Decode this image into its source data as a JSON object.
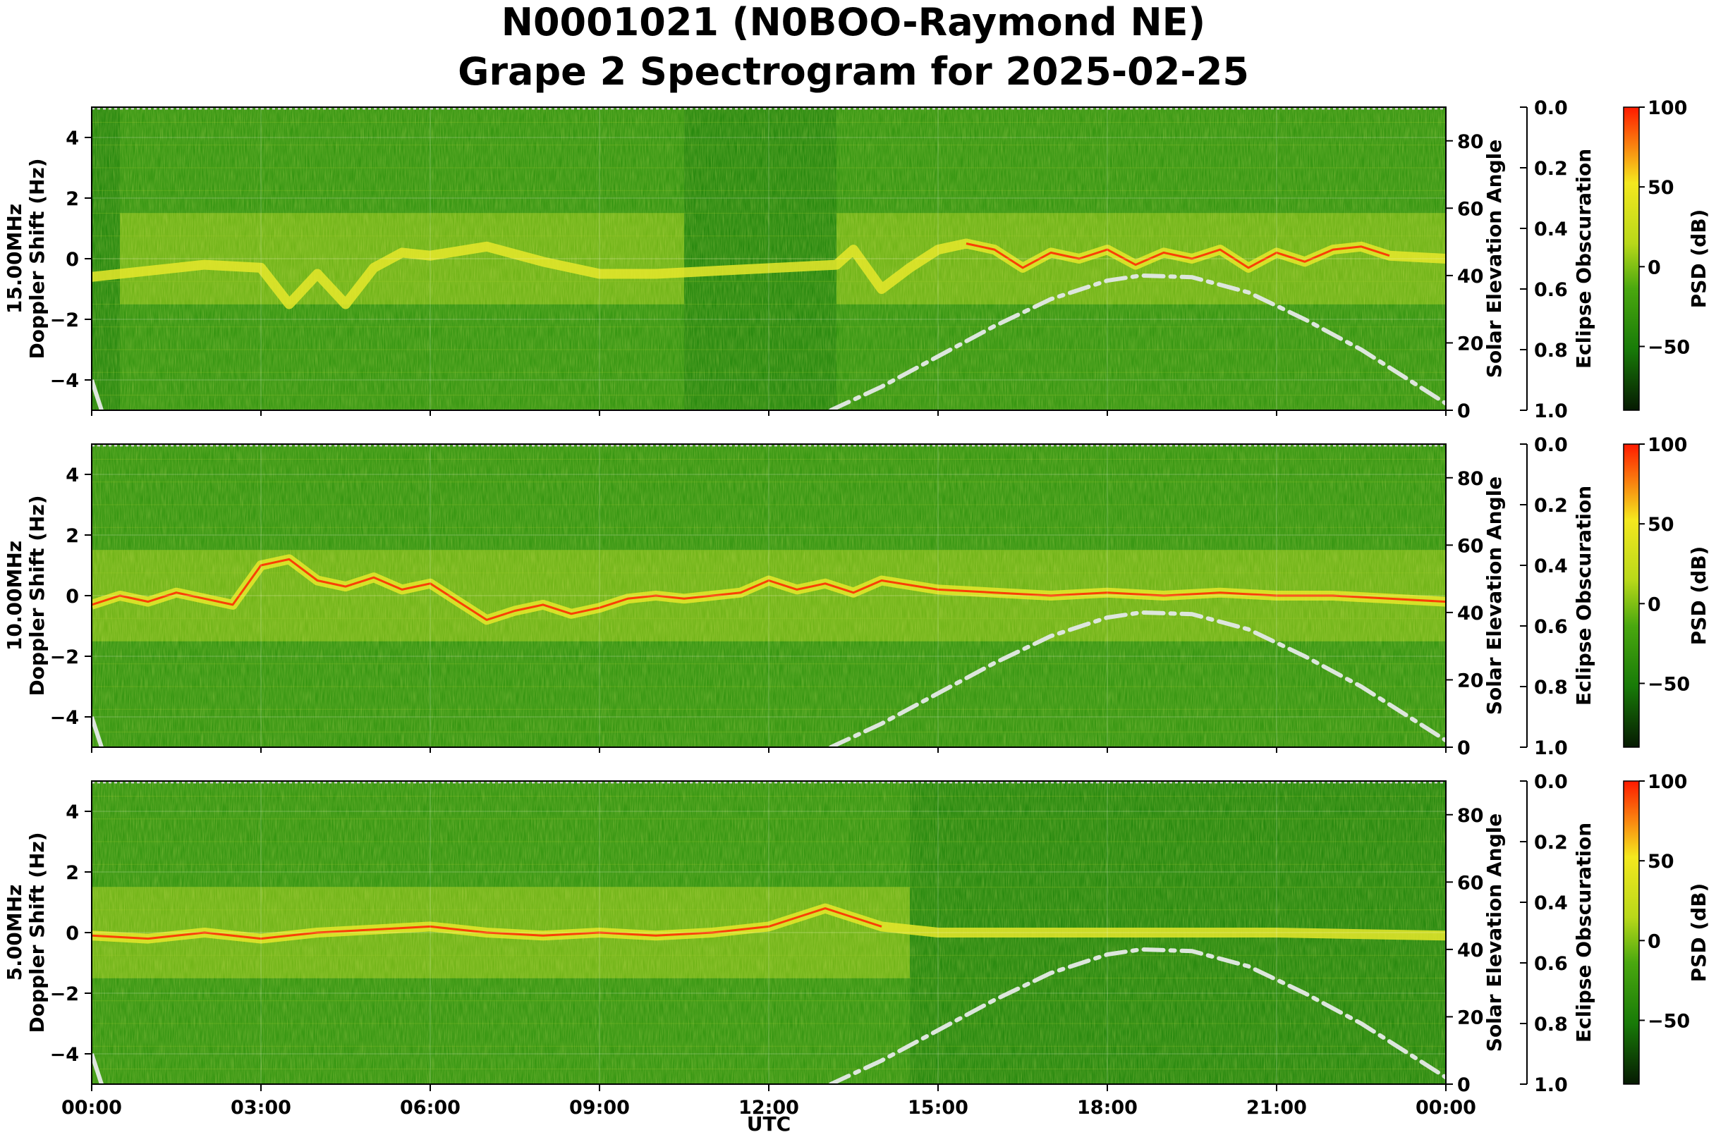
{
  "figure": {
    "title_line1": "N0001021 (N0BOO-Raymond NE)",
    "title_line2": "Grape 2 Spectrogram for 2025-02-25",
    "xlabel": "UTC",
    "x_ticks": [
      "00:00",
      "03:00",
      "06:00",
      "09:00",
      "12:00",
      "15:00",
      "18:00",
      "21:00",
      "00:00"
    ]
  },
  "colors": {
    "background_green": "#2a8a10",
    "dark_green": "#0d6a05",
    "yellow": "#e6e82a",
    "red": "#ff2200",
    "solar_curve": "#dde6dd"
  },
  "chart_data": [
    {
      "type": "heatmap",
      "panel_label": "15.00MHz",
      "ylabel": "Doppler Shift (Hz)",
      "ylim": [
        -5,
        5
      ],
      "y_ticks": [
        "4",
        "2",
        "0",
        "−2",
        "−4"
      ],
      "right_ylabel": "Solar Elevation Angle",
      "right_ylim": [
        0,
        90
      ],
      "right_ticks": [
        "80",
        "60",
        "40",
        "20",
        "0"
      ],
      "eclipse_label": "Eclipse Obscuration",
      "eclipse_ticks": [
        "0.0",
        "0.2",
        "0.4",
        "0.6",
        "0.8",
        "1.0"
      ],
      "colorbar_label": "PSD (dB)",
      "colorbar_ticks": [
        "100",
        "50",
        "0",
        "−50"
      ],
      "colorbar_range": [
        -90,
        100
      ],
      "bright_windows": [
        [
          0.5,
          10.5
        ],
        [
          13.2,
          24
        ]
      ],
      "trace": [
        [
          0,
          -0.6
        ],
        [
          1,
          -0.4
        ],
        [
          2,
          -0.2
        ],
        [
          3,
          -0.3
        ],
        [
          3.5,
          -1.5
        ],
        [
          4,
          -0.5
        ],
        [
          4.5,
          -1.5
        ],
        [
          5,
          -0.3
        ],
        [
          5.5,
          0.2
        ],
        [
          6,
          0.1
        ],
        [
          7,
          0.4
        ],
        [
          8,
          -0.1
        ],
        [
          9,
          -0.5
        ],
        [
          10,
          -0.5
        ],
        [
          13.2,
          -0.2
        ],
        [
          13.5,
          0.3
        ],
        [
          14,
          -1.0
        ],
        [
          14.5,
          -0.3
        ],
        [
          15,
          0.3
        ],
        [
          15.5,
          0.5
        ],
        [
          16,
          0.3
        ],
        [
          16.5,
          -0.3
        ],
        [
          17,
          0.2
        ],
        [
          17.5,
          0.0
        ],
        [
          18,
          0.3
        ],
        [
          18.5,
          -0.2
        ],
        [
          19,
          0.2
        ],
        [
          19.5,
          0.0
        ],
        [
          20,
          0.3
        ],
        [
          20.5,
          -0.3
        ],
        [
          21,
          0.2
        ],
        [
          21.5,
          -0.1
        ],
        [
          22,
          0.3
        ],
        [
          22.5,
          0.4
        ],
        [
          23,
          0.1
        ],
        [
          24,
          0.0
        ]
      ],
      "red_segment": [
        15.5,
        23
      ],
      "solar_elevation": [
        [
          13.1,
          0
        ],
        [
          14,
          7
        ],
        [
          15,
          16
        ],
        [
          16,
          25
        ],
        [
          17,
          33
        ],
        [
          18,
          38.5
        ],
        [
          18.6,
          40
        ],
        [
          19.5,
          39.5
        ],
        [
          20.5,
          35
        ],
        [
          21.5,
          27
        ],
        [
          22.5,
          18
        ],
        [
          23.3,
          9.5
        ],
        [
          24,
          2
        ]
      ]
    },
    {
      "type": "heatmap",
      "panel_label": "10.00MHz",
      "ylabel": "Doppler Shift (Hz)",
      "ylim": [
        -5,
        5
      ],
      "y_ticks": [
        "4",
        "2",
        "0",
        "−2",
        "−4"
      ],
      "right_ylabel": "Solar Elevation Angle",
      "right_ylim": [
        0,
        90
      ],
      "right_ticks": [
        "80",
        "60",
        "40",
        "20",
        "0"
      ],
      "eclipse_label": "Eclipse Obscuration",
      "eclipse_ticks": [
        "0.0",
        "0.2",
        "0.4",
        "0.6",
        "0.8",
        "1.0"
      ],
      "colorbar_label": "PSD (dB)",
      "colorbar_ticks": [
        "100",
        "50",
        "0",
        "−50"
      ],
      "colorbar_range": [
        -90,
        100
      ],
      "bright_windows": [
        [
          0,
          24
        ]
      ],
      "trace": [
        [
          0,
          -0.3
        ],
        [
          0.5,
          0.0
        ],
        [
          1,
          -0.2
        ],
        [
          1.5,
          0.1
        ],
        [
          2,
          -0.1
        ],
        [
          2.5,
          -0.3
        ],
        [
          3,
          1.0
        ],
        [
          3.5,
          1.2
        ],
        [
          4,
          0.5
        ],
        [
          4.5,
          0.3
        ],
        [
          5,
          0.6
        ],
        [
          5.5,
          0.2
        ],
        [
          6,
          0.4
        ],
        [
          6.5,
          -0.2
        ],
        [
          7,
          -0.8
        ],
        [
          7.5,
          -0.5
        ],
        [
          8,
          -0.3
        ],
        [
          8.5,
          -0.6
        ],
        [
          9,
          -0.4
        ],
        [
          9.5,
          -0.1
        ],
        [
          10,
          0.0
        ],
        [
          10.5,
          -0.1
        ],
        [
          11,
          0.0
        ],
        [
          11.5,
          0.1
        ],
        [
          12,
          0.5
        ],
        [
          12.5,
          0.2
        ],
        [
          13,
          0.4
        ],
        [
          13.5,
          0.1
        ],
        [
          14,
          0.5
        ],
        [
          15,
          0.2
        ],
        [
          16,
          0.1
        ],
        [
          17,
          0.0
        ],
        [
          18,
          0.1
        ],
        [
          19,
          0.0
        ],
        [
          20,
          0.1
        ],
        [
          21,
          0.0
        ],
        [
          22,
          0.0
        ],
        [
          23,
          -0.1
        ],
        [
          24,
          -0.2
        ]
      ],
      "red_segment": [
        0,
        24
      ],
      "solar_elevation": [
        [
          13.1,
          0
        ],
        [
          14,
          7
        ],
        [
          15,
          16
        ],
        [
          16,
          25
        ],
        [
          17,
          33
        ],
        [
          18,
          38.5
        ],
        [
          18.6,
          40
        ],
        [
          19.5,
          39.5
        ],
        [
          20.5,
          35
        ],
        [
          21.5,
          27
        ],
        [
          22.5,
          18
        ],
        [
          23.3,
          9.5
        ],
        [
          24,
          2
        ]
      ]
    },
    {
      "type": "heatmap",
      "panel_label": "5.00MHz",
      "ylabel": "Doppler Shift (Hz)",
      "ylim": [
        -5,
        5
      ],
      "y_ticks": [
        "4",
        "2",
        "0",
        "−2",
        "−4"
      ],
      "right_ylabel": "Solar Elevation Angle",
      "right_ylim": [
        0,
        90
      ],
      "right_ticks": [
        "80",
        "60",
        "40",
        "20",
        "0"
      ],
      "eclipse_label": "Eclipse Obscuration",
      "eclipse_ticks": [
        "0.0",
        "0.2",
        "0.4",
        "0.6",
        "0.8",
        "1.0"
      ],
      "colorbar_label": "PSD (dB)",
      "colorbar_ticks": [
        "100",
        "50",
        "0",
        "−50"
      ],
      "colorbar_range": [
        -90,
        100
      ],
      "bright_windows": [
        [
          0,
          14.5
        ]
      ],
      "trace": [
        [
          0,
          -0.1
        ],
        [
          1,
          -0.2
        ],
        [
          2,
          0.0
        ],
        [
          3,
          -0.2
        ],
        [
          4,
          0.0
        ],
        [
          5,
          0.1
        ],
        [
          6,
          0.2
        ],
        [
          7,
          0.0
        ],
        [
          8,
          -0.1
        ],
        [
          9,
          0.0
        ],
        [
          10,
          -0.1
        ],
        [
          11,
          0.0
        ],
        [
          12,
          0.2
        ],
        [
          12.5,
          0.5
        ],
        [
          13,
          0.8
        ],
        [
          13.5,
          0.5
        ],
        [
          14,
          0.2
        ],
        [
          15,
          0.0
        ],
        [
          18,
          0.0
        ],
        [
          21,
          0.0
        ],
        [
          24,
          -0.1
        ]
      ],
      "red_segment": [
        0,
        14
      ],
      "solar_elevation": [
        [
          13.1,
          0
        ],
        [
          14,
          7
        ],
        [
          15,
          16
        ],
        [
          16,
          25
        ],
        [
          17,
          33
        ],
        [
          18,
          38.5
        ],
        [
          18.6,
          40
        ],
        [
          19.5,
          39.5
        ],
        [
          20.5,
          35
        ],
        [
          21.5,
          27
        ],
        [
          22.5,
          18
        ],
        [
          23.3,
          9.5
        ],
        [
          24,
          2
        ]
      ]
    }
  ]
}
